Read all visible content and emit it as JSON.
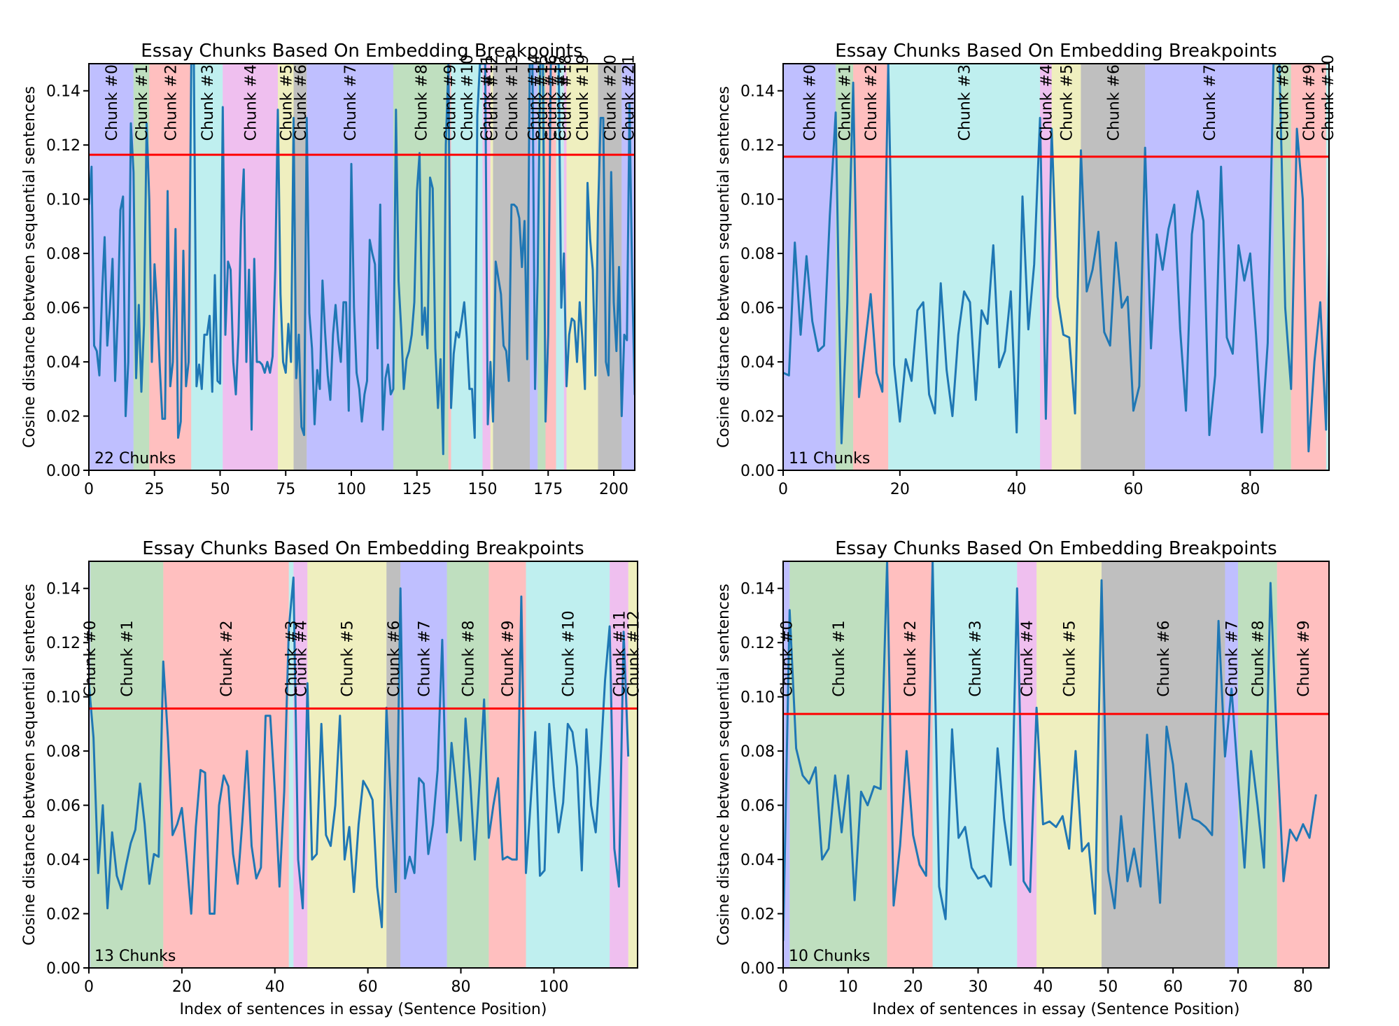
{
  "chart_data": [
    {
      "type": "line",
      "title": "Essay Chunks Based On Embedding Breakpoints",
      "xlabel": "",
      "ylabel": "Cosine distance between sequential sentences",
      "xlim": [
        0,
        208
      ],
      "ylim": [
        0,
        0.15
      ],
      "xticks": [
        0,
        25,
        50,
        75,
        100,
        125,
        150,
        175,
        200
      ],
      "yticks": [
        0.0,
        0.02,
        0.04,
        0.06,
        0.08,
        0.1,
        0.12,
        0.14
      ],
      "threshold": 0.1164,
      "annotation": "22 Chunks",
      "chunks": [
        {
          "label": "Chunk #0",
          "start": 0,
          "end": 17,
          "color": "#0000ff"
        },
        {
          "label": "Chunk #1",
          "start": 17,
          "end": 23,
          "color": "#008000"
        },
        {
          "label": "Chunk #2",
          "start": 23,
          "end": 39,
          "color": "#ff0000"
        },
        {
          "label": "Chunk #3",
          "start": 39,
          "end": 51,
          "color": "#00bfbf"
        },
        {
          "label": "Chunk #4",
          "start": 51,
          "end": 72,
          "color": "#bf00bf"
        },
        {
          "label": "Chunk #5",
          "start": 72,
          "end": 78,
          "color": "#bfbf00"
        },
        {
          "label": "Chunk #6",
          "start": 78,
          "end": 83,
          "color": "#000000"
        },
        {
          "label": "Chunk #7",
          "start": 83,
          "end": 116,
          "color": "#0000ff"
        },
        {
          "label": "Chunk #8",
          "start": 116,
          "end": 137,
          "color": "#008000"
        },
        {
          "label": "Chunk #9",
          "start": 137,
          "end": 138,
          "color": "#ff0000"
        },
        {
          "label": "Chunk #10",
          "start": 138,
          "end": 150,
          "color": "#00bfbf"
        },
        {
          "label": "Chunk #11",
          "start": 150,
          "end": 153,
          "color": "#bf00bf"
        },
        {
          "label": "Chunk #12",
          "start": 153,
          "end": 154,
          "color": "#bfbf00"
        },
        {
          "label": "Chunk #13",
          "start": 154,
          "end": 168,
          "color": "#000000"
        },
        {
          "label": "Chunk #14",
          "start": 168,
          "end": 171,
          "color": "#0000ff"
        },
        {
          "label": "Chunk #15",
          "start": 171,
          "end": 174,
          "color": "#008000"
        },
        {
          "label": "Chunk #16",
          "start": 174,
          "end": 178,
          "color": "#ff0000"
        },
        {
          "label": "Chunk #17",
          "start": 178,
          "end": 181,
          "color": "#00bfbf"
        },
        {
          "label": "Chunk #18",
          "start": 181,
          "end": 182,
          "color": "#bf00bf"
        },
        {
          "label": "Chunk #19",
          "start": 182,
          "end": 194,
          "color": "#bfbf00"
        },
        {
          "label": "Chunk #20",
          "start": 194,
          "end": 203,
          "color": "#000000"
        },
        {
          "label": "Chunk #21",
          "start": 203,
          "end": 208,
          "color": "#0000ff"
        }
      ],
      "y": [
        0.098,
        0.112,
        0.046,
        0.044,
        0.035,
        0.065,
        0.086,
        0.046,
        0.06,
        0.078,
        0.033,
        0.057,
        0.096,
        0.101,
        0.02,
        0.04,
        0.128,
        0.11,
        0.034,
        0.061,
        0.029,
        0.054,
        0.128,
        0.1,
        0.04,
        0.076,
        0.06,
        0.038,
        0.019,
        0.019,
        0.103,
        0.031,
        0.04,
        0.089,
        0.012,
        0.018,
        0.081,
        0.031,
        0.04,
        0.15,
        0.15,
        0.031,
        0.039,
        0.03,
        0.05,
        0.05,
        0.057,
        0.029,
        0.072,
        0.033,
        0.032,
        0.134,
        0.05,
        0.077,
        0.074,
        0.04,
        0.028,
        0.05,
        0.092,
        0.111,
        0.04,
        0.074,
        0.015,
        0.078,
        0.04,
        0.04,
        0.039,
        0.036,
        0.04,
        0.036,
        0.042,
        0.074,
        0.133,
        0.065,
        0.04,
        0.036,
        0.054,
        0.04,
        0.13,
        0.034,
        0.05,
        0.016,
        0.013,
        0.13,
        0.058,
        0.045,
        0.017,
        0.037,
        0.03,
        0.07,
        0.051,
        0.035,
        0.026,
        0.05,
        0.061,
        0.048,
        0.04,
        0.062,
        0.062,
        0.022,
        0.113,
        0.06,
        0.036,
        0.03,
        0.018,
        0.028,
        0.033,
        0.085,
        0.08,
        0.076,
        0.045,
        0.098,
        0.015,
        0.034,
        0.039,
        0.028,
        0.03,
        0.133,
        0.07,
        0.052,
        0.03,
        0.041,
        0.044,
        0.05,
        0.062,
        0.103,
        0.117,
        0.05,
        0.06,
        0.045,
        0.108,
        0.104,
        0.045,
        0.023,
        0.041,
        0.006,
        0.12,
        0.15,
        0.023,
        0.043,
        0.051,
        0.049,
        0.055,
        0.062,
        0.049,
        0.03,
        0.03,
        0.012,
        0.131,
        0.15,
        0.15,
        0.15,
        0.017,
        0.04,
        0.018,
        0.077,
        0.071,
        0.065,
        0.046,
        0.044,
        0.033,
        0.098,
        0.098,
        0.097,
        0.093,
        0.075,
        0.092,
        0.041,
        0.15,
        0.15,
        0.03,
        0.072,
        0.15,
        0.15,
        0.018,
        0.05,
        0.15,
        0.15,
        0.15,
        0.15,
        0.06,
        0.08,
        0.031,
        0.05,
        0.056,
        0.055,
        0.04,
        0.062,
        0.049,
        0.03,
        0.106,
        0.085,
        0.074,
        0.035,
        0.095,
        0.13,
        0.13,
        0.04,
        0.035,
        0.11,
        0.062,
        0.044,
        0.075,
        0.02,
        0.05,
        0.048,
        0.135,
        0.07,
        0.028,
        0.097
      ]
    },
    {
      "type": "line",
      "title": "Essay Chunks Based On Embedding Breakpoints",
      "xlabel": "",
      "ylabel": "Cosine distance between sequential sentences",
      "xlim": [
        0,
        93.5
      ],
      "ylim": [
        0,
        0.15
      ],
      "xticks": [
        0,
        20,
        40,
        60,
        80
      ],
      "yticks": [
        0.0,
        0.02,
        0.04,
        0.06,
        0.08,
        0.1,
        0.12,
        0.14
      ],
      "threshold": 0.1157,
      "annotation": "11 Chunks",
      "chunks": [
        {
          "label": "Chunk #0",
          "start": 0,
          "end": 9,
          "color": "#0000ff"
        },
        {
          "label": "Chunk #1",
          "start": 9,
          "end": 12,
          "color": "#008000"
        },
        {
          "label": "Chunk #2",
          "start": 12,
          "end": 18,
          "color": "#ff0000"
        },
        {
          "label": "Chunk #3",
          "start": 18,
          "end": 44,
          "color": "#00bfbf"
        },
        {
          "label": "Chunk #4",
          "start": 44,
          "end": 46,
          "color": "#bf00bf"
        },
        {
          "label": "Chunk #5",
          "start": 46,
          "end": 51,
          "color": "#bfbf00"
        },
        {
          "label": "Chunk #6",
          "start": 51,
          "end": 62,
          "color": "#000000"
        },
        {
          "label": "Chunk #7",
          "start": 62,
          "end": 84,
          "color": "#0000ff"
        },
        {
          "label": "Chunk #8",
          "start": 84,
          "end": 87,
          "color": "#008000"
        },
        {
          "label": "Chunk #9",
          "start": 87,
          "end": 93,
          "color": "#ff0000"
        },
        {
          "label": "Chunk #10",
          "start": 93,
          "end": 93.5,
          "color": "#00bfbf"
        }
      ],
      "y": [
        0.036,
        0.035,
        0.084,
        0.05,
        0.079,
        0.055,
        0.044,
        0.046,
        0.094,
        0.132,
        0.01,
        0.062,
        0.143,
        0.027,
        0.046,
        0.065,
        0.036,
        0.029,
        0.15,
        0.039,
        0.018,
        0.041,
        0.033,
        0.059,
        0.062,
        0.028,
        0.021,
        0.069,
        0.037,
        0.02,
        0.05,
        0.066,
        0.062,
        0.026,
        0.059,
        0.054,
        0.083,
        0.038,
        0.044,
        0.066,
        0.014,
        0.101,
        0.052,
        0.076,
        0.13,
        0.019,
        0.126,
        0.064,
        0.05,
        0.049,
        0.021,
        0.118,
        0.066,
        0.074,
        0.088,
        0.051,
        0.046,
        0.084,
        0.06,
        0.064,
        0.022,
        0.031,
        0.119,
        0.045,
        0.087,
        0.074,
        0.089,
        0.098,
        0.052,
        0.022,
        0.087,
        0.103,
        0.092,
        0.013,
        0.035,
        0.112,
        0.049,
        0.043,
        0.083,
        0.07,
        0.08,
        0.05,
        0.014,
        0.047,
        0.15,
        0.15,
        0.06,
        0.03,
        0.126,
        0.1,
        0.007,
        0.04,
        0.062,
        0.015,
        0.132
      ]
    },
    {
      "type": "line",
      "title": "Essay Chunks Based On Embedding Breakpoints",
      "xlabel": "Index of sentences in essay (Sentence Position)",
      "ylabel": "Cosine distance between sequential sentences",
      "xlim": [
        0,
        118
      ],
      "ylim": [
        0,
        0.15
      ],
      "xticks": [
        0,
        20,
        40,
        60,
        80,
        100
      ],
      "yticks": [
        0.0,
        0.02,
        0.04,
        0.06,
        0.08,
        0.1,
        0.12,
        0.14
      ],
      "threshold": 0.0957,
      "annotation": "13 Chunks",
      "chunks": [
        {
          "label": "Chunk #0",
          "start": 0,
          "end": 0.3,
          "color": "#0000ff"
        },
        {
          "label": "Chunk #1",
          "start": 0.3,
          "end": 16,
          "color": "#008000"
        },
        {
          "label": "Chunk #2",
          "start": 16,
          "end": 43,
          "color": "#ff0000"
        },
        {
          "label": "Chunk #3",
          "start": 43,
          "end": 44,
          "color": "#00bfbf"
        },
        {
          "label": "Chunk #4",
          "start": 44,
          "end": 47,
          "color": "#bf00bf"
        },
        {
          "label": "Chunk #5",
          "start": 47,
          "end": 64,
          "color": "#bfbf00"
        },
        {
          "label": "Chunk #6",
          "start": 64,
          "end": 67,
          "color": "#000000"
        },
        {
          "label": "Chunk #7",
          "start": 67,
          "end": 77,
          "color": "#0000ff"
        },
        {
          "label": "Chunk #8",
          "start": 77,
          "end": 86,
          "color": "#008000"
        },
        {
          "label": "Chunk #9",
          "start": 86,
          "end": 94,
          "color": "#ff0000"
        },
        {
          "label": "Chunk #10",
          "start": 94,
          "end": 112,
          "color": "#00bfbf"
        },
        {
          "label": "Chunk #11",
          "start": 112,
          "end": 116,
          "color": "#bf00bf"
        },
        {
          "label": "Chunk #12",
          "start": 116,
          "end": 118,
          "color": "#bfbf00"
        }
      ],
      "y": [
        0.105,
        0.085,
        0.035,
        0.06,
        0.022,
        0.05,
        0.034,
        0.029,
        0.038,
        0.046,
        0.051,
        0.068,
        0.053,
        0.031,
        0.042,
        0.041,
        0.113,
        0.085,
        0.049,
        0.053,
        0.059,
        0.041,
        0.02,
        0.052,
        0.073,
        0.072,
        0.02,
        0.02,
        0.06,
        0.071,
        0.067,
        0.042,
        0.031,
        0.054,
        0.08,
        0.045,
        0.033,
        0.037,
        0.093,
        0.093,
        0.065,
        0.03,
        0.065,
        0.125,
        0.144,
        0.04,
        0.022,
        0.105,
        0.04,
        0.042,
        0.09,
        0.049,
        0.045,
        0.06,
        0.093,
        0.04,
        0.052,
        0.028,
        0.053,
        0.069,
        0.066,
        0.062,
        0.03,
        0.015,
        0.096,
        0.06,
        0.028,
        0.14,
        0.033,
        0.041,
        0.035,
        0.07,
        0.068,
        0.042,
        0.053,
        0.073,
        0.121,
        0.05,
        0.083,
        0.066,
        0.047,
        0.092,
        0.07,
        0.04,
        0.068,
        0.099,
        0.048,
        0.06,
        0.07,
        0.04,
        0.041,
        0.04,
        0.04,
        0.137,
        0.035,
        0.061,
        0.087,
        0.034,
        0.036,
        0.09,
        0.067,
        0.05,
        0.061,
        0.09,
        0.087,
        0.074,
        0.036,
        0.088,
        0.06,
        0.05,
        0.075,
        0.106,
        0.126,
        0.044,
        0.03,
        0.124,
        0.078
      ]
    },
    {
      "type": "line",
      "title": "Essay Chunks Based On Embedding Breakpoints",
      "xlabel": "Index of sentences in essay (Sentence Position)",
      "ylabel": "Cosine distance between sequential sentences",
      "xlim": [
        0,
        84
      ],
      "ylim": [
        0,
        0.15
      ],
      "xticks": [
        0,
        10,
        20,
        30,
        40,
        50,
        60,
        70,
        80
      ],
      "yticks": [
        0.0,
        0.02,
        0.04,
        0.06,
        0.08,
        0.1,
        0.12,
        0.14
      ],
      "threshold": 0.0937,
      "annotation": "10 Chunks",
      "chunks": [
        {
          "label": "Chunk #0",
          "start": 0,
          "end": 1,
          "color": "#0000ff"
        },
        {
          "label": "Chunk #1",
          "start": 1,
          "end": 16,
          "color": "#008000"
        },
        {
          "label": "Chunk #2",
          "start": 16,
          "end": 23,
          "color": "#ff0000"
        },
        {
          "label": "Chunk #3",
          "start": 23,
          "end": 36,
          "color": "#00bfbf"
        },
        {
          "label": "Chunk #4",
          "start": 36,
          "end": 39,
          "color": "#bf00bf"
        },
        {
          "label": "Chunk #5",
          "start": 39,
          "end": 49,
          "color": "#bfbf00"
        },
        {
          "label": "Chunk #6",
          "start": 49,
          "end": 68,
          "color": "#000000"
        },
        {
          "label": "Chunk #7",
          "start": 68,
          "end": 70,
          "color": "#0000ff"
        },
        {
          "label": "Chunk #8",
          "start": 70,
          "end": 76,
          "color": "#008000"
        },
        {
          "label": "Chunk #9",
          "start": 76,
          "end": 84,
          "color": "#ff0000"
        }
      ],
      "y": [
        0.01,
        0.132,
        0.081,
        0.071,
        0.068,
        0.074,
        0.04,
        0.044,
        0.071,
        0.05,
        0.071,
        0.025,
        0.065,
        0.06,
        0.067,
        0.066,
        0.15,
        0.023,
        0.045,
        0.08,
        0.049,
        0.038,
        0.034,
        0.15,
        0.03,
        0.018,
        0.088,
        0.048,
        0.052,
        0.037,
        0.033,
        0.034,
        0.03,
        0.081,
        0.055,
        0.038,
        0.14,
        0.032,
        0.028,
        0.096,
        0.053,
        0.054,
        0.052,
        0.056,
        0.044,
        0.08,
        0.043,
        0.046,
        0.02,
        0.143,
        0.036,
        0.022,
        0.056,
        0.032,
        0.044,
        0.03,
        0.086,
        0.056,
        0.024,
        0.089,
        0.075,
        0.048,
        0.068,
        0.055,
        0.054,
        0.052,
        0.049,
        0.128,
        0.078,
        0.103,
        0.07,
        0.037,
        0.08,
        0.06,
        0.037,
        0.142,
        0.082,
        0.032,
        0.051,
        0.047,
        0.053,
        0.048,
        0.064
      ]
    }
  ]
}
